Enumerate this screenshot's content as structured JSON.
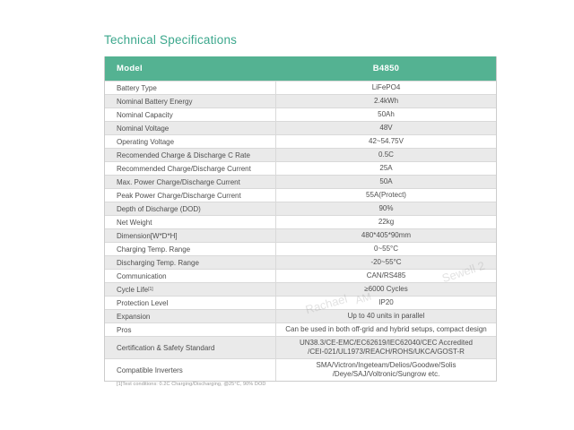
{
  "page": {
    "title": "Technical Specifications"
  },
  "colors": {
    "accent": "#54b292",
    "title_text": "#3ba78c",
    "row_alt": "#eaeaea"
  },
  "table": {
    "header": {
      "model_label": "Model",
      "model_value": "B4850"
    },
    "rows": [
      {
        "label": "Battery Type",
        "value": "LiFePO4"
      },
      {
        "label": "Nominal Battery Energy",
        "value": "2.4kWh"
      },
      {
        "label": "Nominal Capacity",
        "value": "50Ah"
      },
      {
        "label": "Nominal Voltage",
        "value": "48V"
      },
      {
        "label": "Operating Voltage",
        "value": "42~54.75V"
      },
      {
        "label": "Recomended Charge & Discharge C Rate",
        "value": "0.5C"
      },
      {
        "label": "Recommended Charge/Discharge Current",
        "value": "25A"
      },
      {
        "label": "Max. Power Charge/Discharge Current",
        "value": "50A"
      },
      {
        "label": "Peak Power Charge/Discharge Current",
        "value": "55A(Protect)"
      },
      {
        "label": "Depth of Discharge (DOD)",
        "value": "90%"
      },
      {
        "label": "Net Weight",
        "value": "22kg"
      },
      {
        "label": "Dimension[W*D*H]",
        "value": "480*405*90mm"
      },
      {
        "label": "Charging Temp. Range",
        "value": "0~55°C"
      },
      {
        "label": "Discharging Temp. Range",
        "value": "-20~55°C"
      },
      {
        "label": "Communication",
        "value": "CAN/RS485"
      },
      {
        "label": "Cycle Life",
        "label_sup": "[1]",
        "value": "≥6000 Cycles"
      },
      {
        "label": "Protection Level",
        "value": "IP20"
      },
      {
        "label": "Expansion",
        "value": "Up to 40 units in parallel"
      },
      {
        "label": "Pros",
        "value": "Can be used in both off-grid and hybrid setups, compact design"
      },
      {
        "label": "Certification & Safety Standard",
        "value": "UN38.3/CE-EMC/EC62619/IEC62040/CEC Accredited\n/CEI-021/UL1973/REACH/ROHS/UKCA/GOST-R"
      },
      {
        "label": "Compatible Inverters",
        "value": "SMA/Victron/Ingeteam/Delios/Goodwe/Solis\n/Deye/SAJ/Voltronic/Sungrow etc."
      }
    ],
    "footnote": "[1]Test conditions: 0.2C Charging/Discharging, @25°C, 90% DOD"
  },
  "watermarks": [
    {
      "text": "Rachael"
    },
    {
      "text": "AM"
    },
    {
      "text": "Sewell 2"
    }
  ]
}
